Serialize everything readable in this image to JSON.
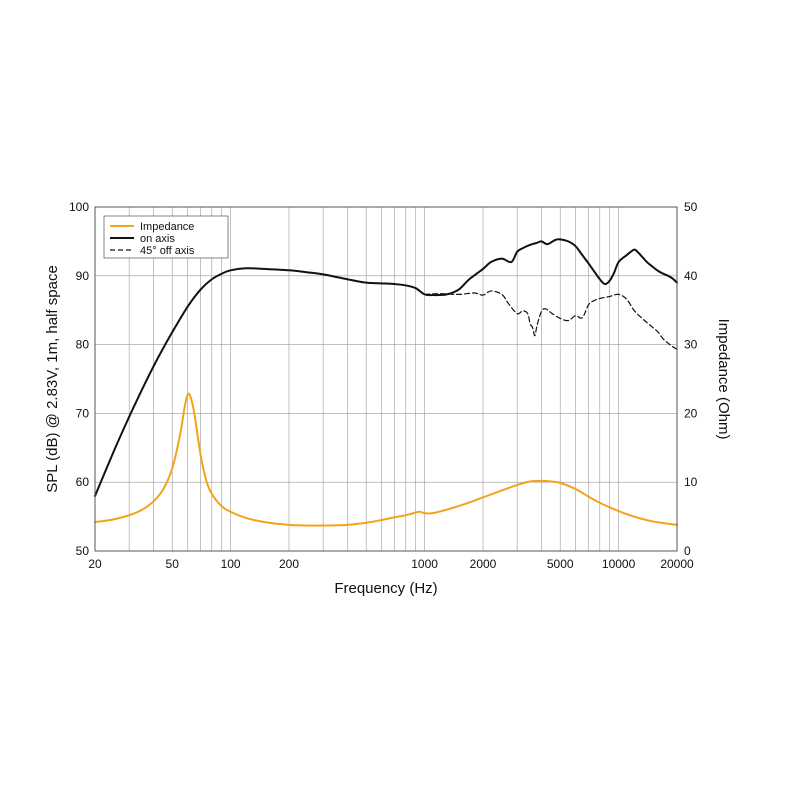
{
  "chart_data": {
    "type": "line",
    "title": "",
    "xlabel": "Frequency (Hz)",
    "ylabel": "SPL (dB) @ 2.83V, 1m, half space",
    "y2label": "Impedance (Ohm)",
    "x_scale": "log",
    "xlim": [
      20,
      20000
    ],
    "ylim": [
      50,
      100
    ],
    "y2lim": [
      0,
      50
    ],
    "grid": true,
    "legend_position": "top-left",
    "x_ticks": [
      20,
      50,
      100,
      200,
      1000,
      2000,
      5000,
      10000,
      20000
    ],
    "x_tick_labels": [
      "20",
      "50",
      "100",
      "200",
      "1000",
      "2000",
      "5000",
      "10000",
      "20000"
    ],
    "y_ticks": [
      50,
      60,
      70,
      80,
      90,
      100
    ],
    "y2_ticks": [
      0,
      10,
      20,
      30,
      40,
      50
    ],
    "series": [
      {
        "name": "Impedance",
        "axis": "right",
        "color": "#f5a21b",
        "dash": "solid",
        "x": [
          20,
          25,
          30,
          35,
          40,
          45,
          50,
          55,
          58,
          60,
          62,
          65,
          70,
          75,
          80,
          90,
          100,
          120,
          150,
          200,
          250,
          300,
          400,
          500,
          600,
          700,
          800,
          900,
          950,
          1000,
          1100,
          1300,
          1600,
          2000,
          2500,
          3000,
          3500,
          4000,
          4500,
          5000,
          6000,
          7000,
          8000,
          10000,
          12000,
          15000,
          20000
        ],
        "values": [
          4.2,
          4.6,
          5.2,
          6.0,
          7.2,
          9.0,
          12.0,
          17.0,
          21.0,
          22.7,
          22.5,
          20.0,
          14.0,
          10.2,
          8.3,
          6.5,
          5.7,
          4.8,
          4.2,
          3.8,
          3.7,
          3.7,
          3.8,
          4.1,
          4.5,
          4.9,
          5.2,
          5.6,
          5.7,
          5.5,
          5.5,
          6.0,
          6.8,
          7.8,
          8.8,
          9.6,
          10.1,
          10.2,
          10.1,
          9.9,
          9.0,
          7.9,
          7.0,
          5.8,
          5.0,
          4.3,
          3.8
        ]
      },
      {
        "name": "on axis",
        "axis": "left",
        "color": "#111111",
        "dash": "solid",
        "x": [
          20,
          25,
          30,
          35,
          40,
          45,
          50,
          60,
          70,
          80,
          90,
          100,
          120,
          150,
          200,
          250,
          300,
          400,
          500,
          600,
          700,
          800,
          900,
          1000,
          1100,
          1300,
          1500,
          1700,
          2000,
          2200,
          2500,
          2800,
          3000,
          3200,
          3500,
          3800,
          4000,
          4300,
          4700,
          5000,
          5500,
          6000,
          6500,
          7000,
          7500,
          8000,
          8500,
          9000,
          9500,
          10000,
          11000,
          12000,
          12500,
          13000,
          14000,
          15000,
          16000,
          17000,
          18000,
          19000,
          20000
        ],
        "values": [
          58.0,
          64.5,
          69.5,
          73.5,
          76.8,
          79.5,
          81.8,
          85.5,
          88.0,
          89.5,
          90.3,
          90.8,
          91.1,
          91.0,
          90.8,
          90.5,
          90.2,
          89.5,
          89.0,
          88.9,
          88.8,
          88.6,
          88.2,
          87.3,
          87.2,
          87.3,
          88.0,
          89.5,
          91.0,
          92.0,
          92.5,
          92.0,
          93.5,
          94.0,
          94.5,
          94.8,
          95.0,
          94.6,
          95.2,
          95.3,
          95.0,
          94.3,
          93.0,
          91.8,
          90.6,
          89.5,
          88.8,
          89.3,
          90.5,
          92.0,
          93.0,
          93.8,
          93.5,
          93.0,
          92.0,
          91.3,
          90.7,
          90.3,
          90.0,
          89.6,
          89.0
        ]
      },
      {
        "name": "45° off axis",
        "axis": "left",
        "color": "#111111",
        "dash": "dashed",
        "x": [
          1000,
          1200,
          1500,
          1800,
          2000,
          2200,
          2500,
          2700,
          3000,
          3200,
          3400,
          3500,
          3600,
          3700,
          3800,
          4000,
          4200,
          4500,
          5000,
          5500,
          6000,
          6500,
          7000,
          7500,
          8000,
          9000,
          10000,
          11000,
          12000,
          13000,
          14000,
          15000,
          16000,
          17000,
          18000,
          19000,
          20000
        ],
        "values": [
          87.3,
          87.4,
          87.3,
          87.5,
          87.2,
          87.8,
          87.3,
          86.0,
          84.5,
          84.9,
          84.5,
          83.0,
          82.5,
          81.3,
          82.8,
          84.8,
          85.2,
          84.6,
          83.8,
          83.5,
          84.2,
          83.9,
          85.8,
          86.4,
          86.7,
          87.0,
          87.3,
          86.6,
          85.0,
          84.0,
          83.2,
          82.5,
          81.8,
          80.8,
          80.2,
          79.7,
          79.3
        ]
      }
    ]
  }
}
